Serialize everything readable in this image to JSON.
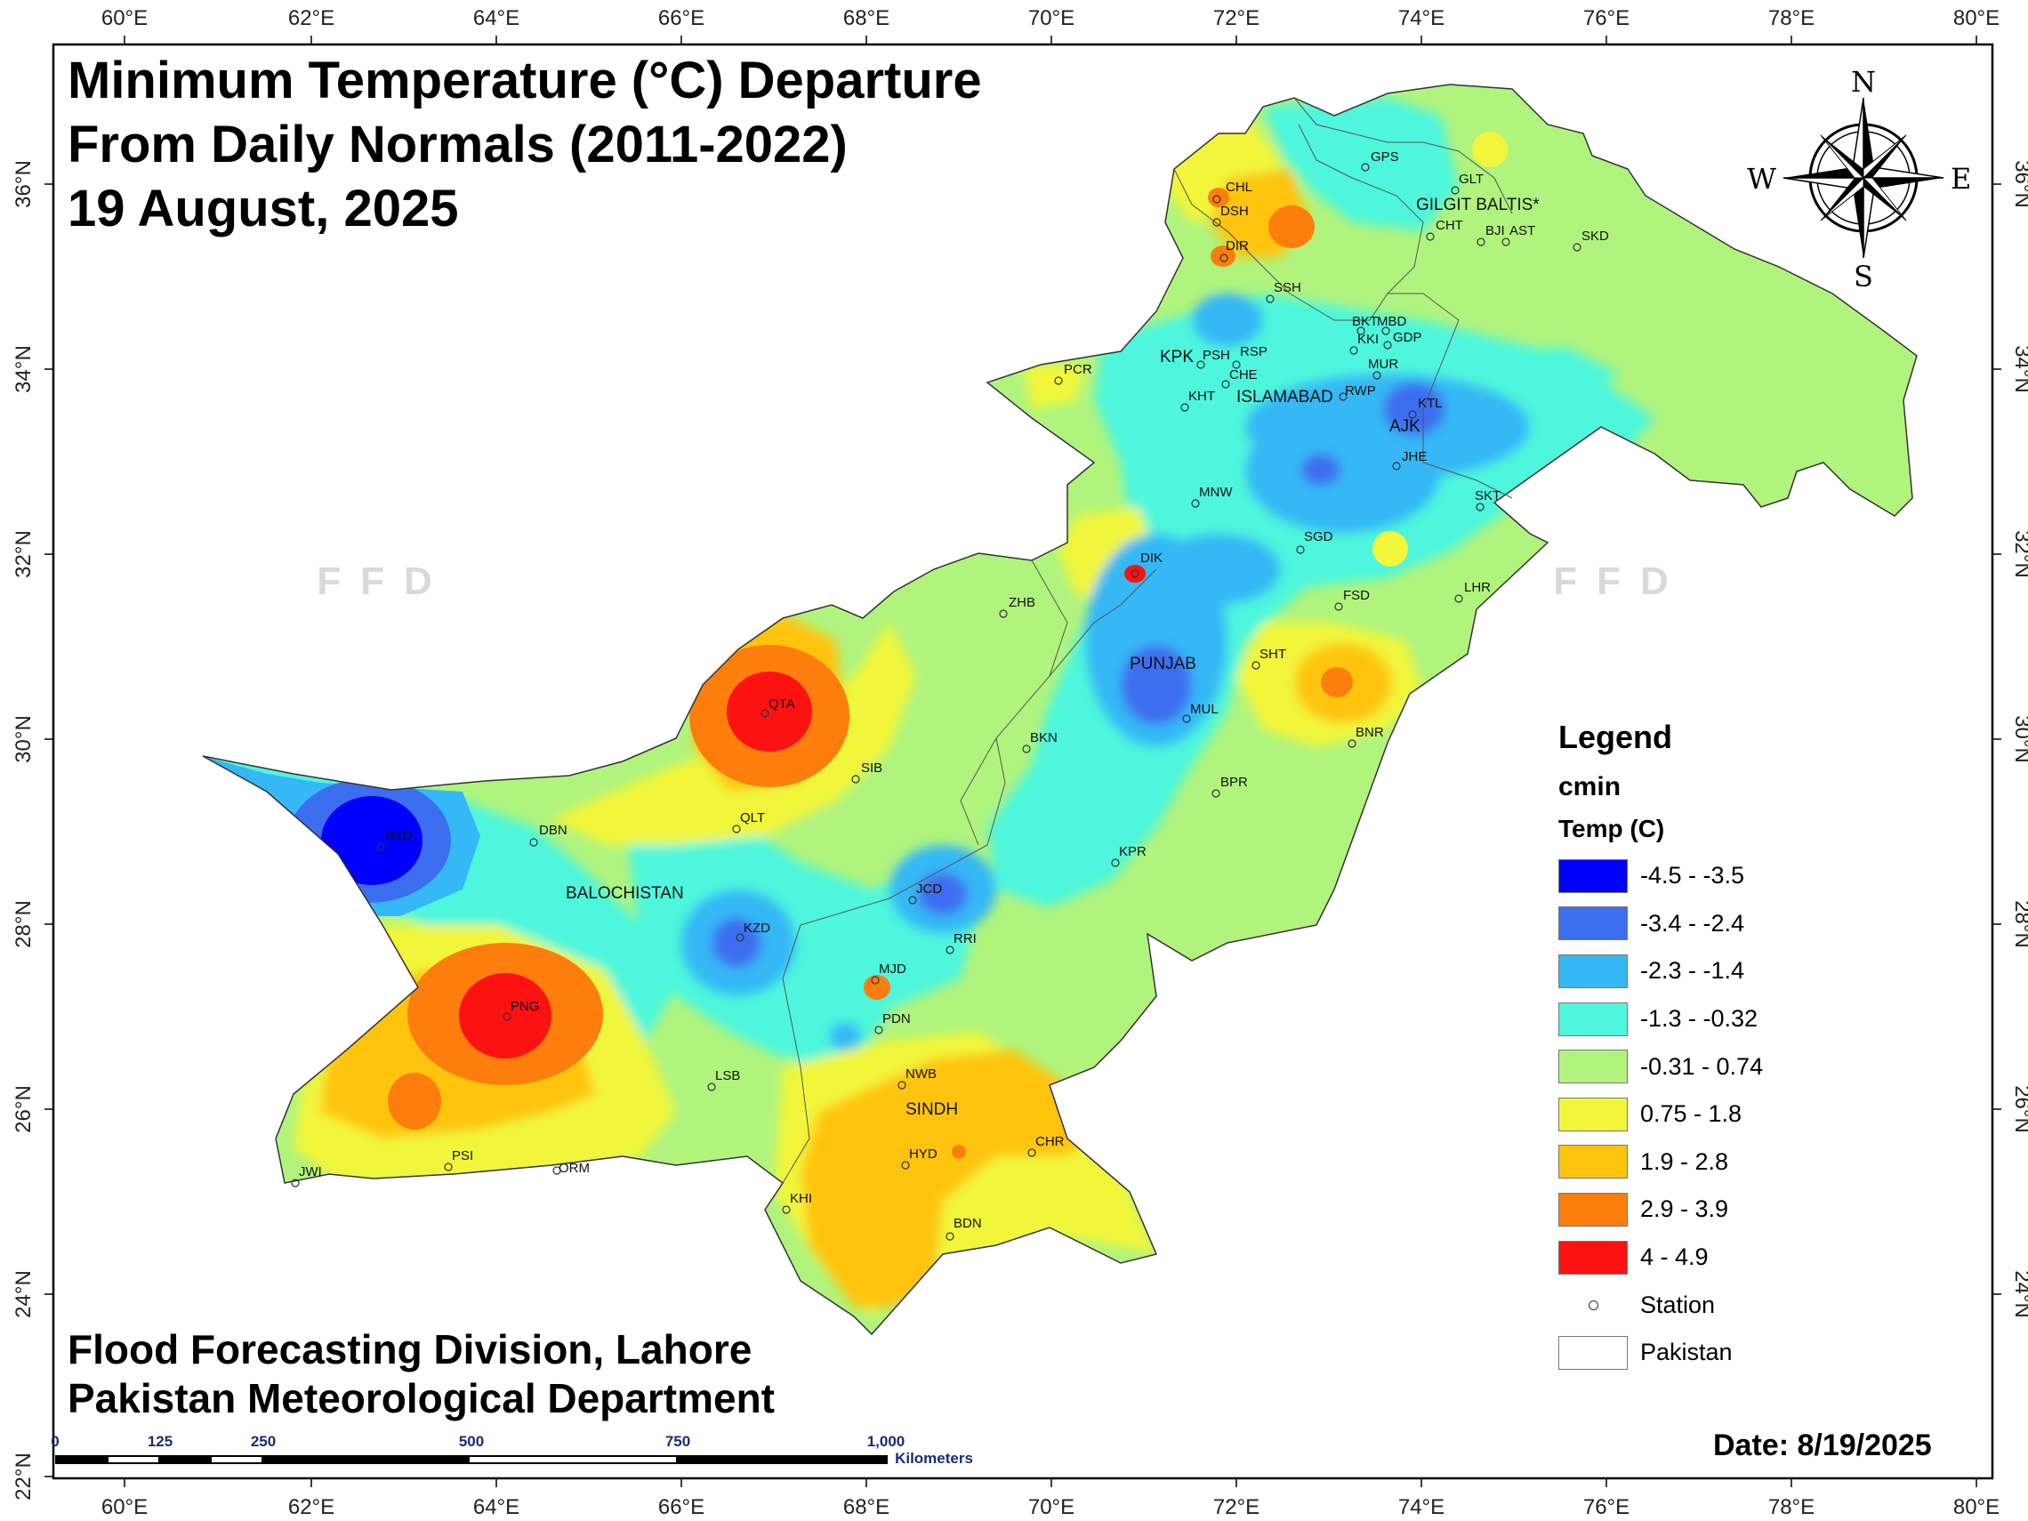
{
  "title_lines": [
    "Minimum Temperature (°C) Departure",
    "From Daily Normals (2011-2022)",
    "19 August, 2025"
  ],
  "credit_lines": [
    "Flood Forecasting Division, Lahore",
    "Pakistan Meteorological Department"
  ],
  "date_text": "Date: 8/19/2025",
  "watermark": "FFD",
  "compass": {
    "n": "N",
    "s": "S",
    "e": "E",
    "w": "W"
  },
  "lon_labels": [
    "60°E",
    "62°E",
    "64°E",
    "66°E",
    "68°E",
    "70°E",
    "72°E",
    "74°E",
    "76°E",
    "78°E",
    "80°E"
  ],
  "lat_labels": [
    "36°N",
    "34°N",
    "32°N",
    "30°N",
    "28°N",
    "26°N",
    "24°N",
    "22°N"
  ],
  "regions": [
    "GILGIT BALTIS*",
    "KPK",
    "ISLAMABAD",
    "AJK",
    "PUNJAB",
    "BALOCHISTAN",
    "SINDH"
  ],
  "stations": [
    "GPS",
    "GLT",
    "CHL",
    "DSH",
    "DIR",
    "SSH",
    "CHT",
    "BJI",
    "AST",
    "SKD",
    "BKT",
    "MBD",
    "KKI",
    "GDP",
    "MUR",
    "RWP",
    "PSH",
    "RSP",
    "CHE",
    "KHT",
    "PCR",
    "KTL",
    "JHE",
    "SKT",
    "MNW",
    "SGD",
    "DIK",
    "FSD",
    "LHR",
    "ZHB",
    "PUNJAB",
    "SHT",
    "MUL",
    "BNR",
    "QTA",
    "BKN",
    "SIB",
    "BPR",
    "DBN",
    "QLT",
    "NKD",
    "KPR",
    "JCD",
    "KZD",
    "RRI",
    "MJD",
    "PNG",
    "PDN",
    "LSB",
    "NWB",
    "HYD",
    "CHR",
    "PSI",
    "JWI",
    "ORM",
    "KHI",
    "BDN"
  ],
  "legend": {
    "title": "Legend",
    "field": "cmin",
    "subtitle": "Temp (C)",
    "classes": [
      {
        "label": "-4.5 - -3.5",
        "color": "#0000ff"
      },
      {
        "label": "-3.4 - -2.4",
        "color": "#3c6ef0"
      },
      {
        "label": "-2.3 - -1.4",
        "color": "#35b8f5"
      },
      {
        "label": "-1.3 - -0.32",
        "color": "#4df6dc"
      },
      {
        "label": "-0.31 - 0.74",
        "color": "#b0f47e"
      },
      {
        "label": "0.75 - 1.8",
        "color": "#f1f63a"
      },
      {
        "label": "1.9 - 2.8",
        "color": "#fec40f"
      },
      {
        "label": "2.9 - 3.9",
        "color": "#fe7e0d"
      },
      {
        "label": "4 - 4.9",
        "color": "#fd1212"
      }
    ],
    "station_label": "Station",
    "pakistan_label": "Pakistan"
  },
  "scale_bar": {
    "ticks": [
      "0",
      "125",
      "250",
      "500",
      "750",
      "1,000"
    ],
    "unit": "Kilometers"
  }
}
